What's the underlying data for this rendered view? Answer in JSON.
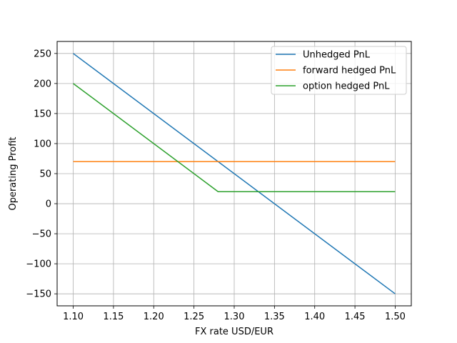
{
  "chart_data": {
    "type": "line",
    "title": "",
    "xlabel": "FX rate USD/EUR",
    "ylabel": "Operating Profit",
    "xlim": [
      1.08,
      1.52
    ],
    "ylim": [
      -170,
      270
    ],
    "x_ticks": [
      1.1,
      1.15,
      1.2,
      1.25,
      1.3,
      1.35,
      1.4,
      1.45,
      1.5
    ],
    "x_tick_labels": [
      "1.10",
      "1.15",
      "1.20",
      "1.25",
      "1.30",
      "1.35",
      "1.40",
      "1.45",
      "1.50"
    ],
    "y_ticks": [
      250,
      200,
      150,
      100,
      50,
      0,
      -50,
      -100,
      -150
    ],
    "y_tick_labels": [
      "250",
      "200",
      "150",
      "100",
      "50",
      "0",
      "−50",
      "−100",
      "−150"
    ],
    "grid": true,
    "legend_position": "top-right",
    "series": [
      {
        "name": "Unhedged PnL",
        "color": "#1f77b4",
        "x": [
          1.1,
          1.5
        ],
        "y": [
          250,
          -150
        ]
      },
      {
        "name": "forward hedged PnL",
        "color": "#ff7f0e",
        "x": [
          1.1,
          1.5
        ],
        "y": [
          70,
          70
        ]
      },
      {
        "name": "option hedged PnL",
        "color": "#2ca02c",
        "x": [
          1.1,
          1.28,
          1.5
        ],
        "y": [
          200,
          20,
          20
        ]
      }
    ]
  }
}
